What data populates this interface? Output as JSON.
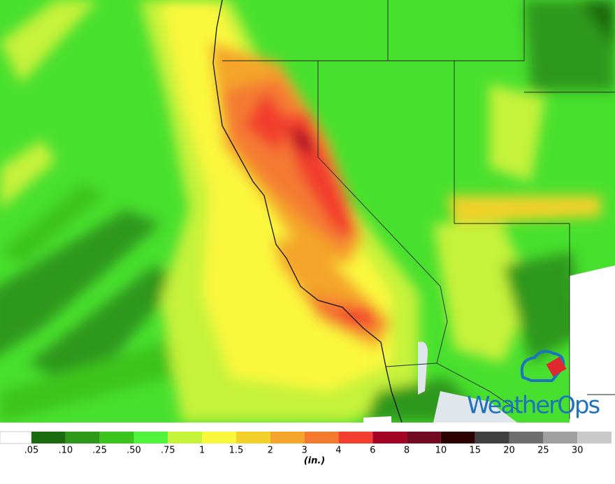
{
  "logo": {
    "text": "WeatherOps"
  },
  "legend": {
    "unit": "(in.)",
    "bins": [
      {
        "color": "#ffffff"
      },
      {
        "label": ".05",
        "color": "#1a6b0e"
      },
      {
        "label": ".10",
        "color": "#2e981a"
      },
      {
        "label": ".25",
        "color": "#3cc41e"
      },
      {
        "label": ".50",
        "color": "#50f43a"
      },
      {
        "label": ".75",
        "color": "#c6f23a"
      },
      {
        "label": "1",
        "color": "#faf83c"
      },
      {
        "label": "1.5",
        "color": "#f2d22a"
      },
      {
        "label": "2",
        "color": "#f4a42a"
      },
      {
        "label": "3",
        "color": "#f47a30"
      },
      {
        "label": "4",
        "color": "#f23e2e"
      },
      {
        "label": "6",
        "color": "#a40424"
      },
      {
        "label": "8",
        "color": "#720a22"
      },
      {
        "label": "10",
        "color": "#2a0202"
      },
      {
        "label": "15",
        "color": "#404040"
      },
      {
        "label": "20",
        "color": "#6e6e6e"
      },
      {
        "label": "25",
        "color": "#a0a0a0"
      },
      {
        "label": "30",
        "color": "#cacaca"
      }
    ]
  }
}
